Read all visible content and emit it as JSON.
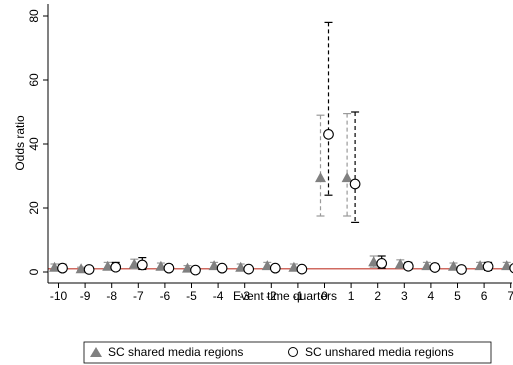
{
  "chart_data": {
    "type": "scatter",
    "title": "",
    "xlabel": "Event time quarters",
    "ylabel": "Odds ratio",
    "xlim": [
      -10.5,
      7
    ],
    "ylim": [
      -1,
      82
    ],
    "x_ticks": [
      -10,
      -9,
      -8,
      -7,
      -6,
      -5,
      -4,
      -3,
      -2,
      -1,
      0,
      1,
      2,
      3,
      4,
      5,
      6,
      7
    ],
    "y_ticks": [
      0,
      20,
      40,
      60,
      80
    ],
    "x_tick_labels": [
      "-10",
      "-9",
      "-8",
      "-7",
      "-6",
      "-5",
      "-4",
      "-3",
      "-2",
      "-1",
      "0",
      "1",
      "2",
      "3",
      "4",
      "5",
      "6",
      "7"
    ],
    "y_tick_labels": [
      "0",
      "20",
      "40",
      "60",
      "80"
    ],
    "reference_line": {
      "y": 1,
      "color": "#c0392b"
    },
    "grid": false,
    "legend_position": "bottom",
    "series": [
      {
        "name": "SC shared media regions",
        "marker": "triangle",
        "color": "#808080",
        "error_bar_style": "dashed-gray",
        "points": [
          {
            "x": -10,
            "y": 1.5,
            "lo": 0.5,
            "hi": 2.5
          },
          {
            "x": -9,
            "y": 1.0,
            "lo": 0.5,
            "hi": 1.5
          },
          {
            "x": -8,
            "y": 1.8,
            "lo": 0.8,
            "hi": 3.0
          },
          {
            "x": -7,
            "y": 2.5,
            "lo": 1.0,
            "hi": 4.0
          },
          {
            "x": -6,
            "y": 1.8,
            "lo": 0.8,
            "hi": 2.8
          },
          {
            "x": -5,
            "y": 1.2,
            "lo": 0.5,
            "hi": 2.0
          },
          {
            "x": -4,
            "y": 2.0,
            "lo": 1.0,
            "hi": 3.0
          },
          {
            "x": -3,
            "y": 1.5,
            "lo": 0.7,
            "hi": 2.5
          },
          {
            "x": -2,
            "y": 2.0,
            "lo": 1.0,
            "hi": 3.0
          },
          {
            "x": -1,
            "y": 1.5,
            "lo": 0.7,
            "hi": 2.5
          },
          {
            "x": 0,
            "y": 29.5,
            "lo": 17.5,
            "hi": 49
          },
          {
            "x": 1,
            "y": 29.5,
            "lo": 17.5,
            "hi": 49.5
          },
          {
            "x": 2,
            "y": 3.2,
            "lo": 1.5,
            "hi": 5.0
          },
          {
            "x": 3,
            "y": 2.5,
            "lo": 1.2,
            "hi": 3.8
          },
          {
            "x": 4,
            "y": 2.0,
            "lo": 1.0,
            "hi": 3.0
          },
          {
            "x": 5,
            "y": 1.8,
            "lo": 0.8,
            "hi": 2.8
          },
          {
            "x": 6,
            "y": 2.0,
            "lo": 1.0,
            "hi": 3.0
          },
          {
            "x": 7,
            "y": 2.0,
            "lo": 1.0,
            "hi": 3.0
          }
        ]
      },
      {
        "name": "SC unshared media regions",
        "marker": "hollow-circle",
        "color": "#000000",
        "error_bar_style": "dashed-black",
        "points": [
          {
            "x": -10,
            "y": 1.2,
            "lo": 0.4,
            "hi": 2.4
          },
          {
            "x": -9,
            "y": 0.8,
            "lo": 0.3,
            "hi": 1.5
          },
          {
            "x": -8,
            "y": 1.5,
            "lo": 0.5,
            "hi": 3.0
          },
          {
            "x": -7,
            "y": 2.2,
            "lo": 0.8,
            "hi": 4.5
          },
          {
            "x": -6,
            "y": 1.2,
            "lo": 0.5,
            "hi": 2.3
          },
          {
            "x": -5,
            "y": 0.6,
            "lo": 0.2,
            "hi": 1.2
          },
          {
            "x": -4,
            "y": 1.2,
            "lo": 0.5,
            "hi": 2.0
          },
          {
            "x": -3,
            "y": 0.9,
            "lo": 0.3,
            "hi": 1.6
          },
          {
            "x": -2,
            "y": 1.2,
            "lo": 0.5,
            "hi": 2.0
          },
          {
            "x": -1,
            "y": 0.9,
            "lo": 0.3,
            "hi": 1.6
          },
          {
            "x": 0,
            "y": 43,
            "lo": 24,
            "hi": 78
          },
          {
            "x": 1,
            "y": 27.5,
            "lo": 15.5,
            "hi": 50
          },
          {
            "x": 2,
            "y": 2.7,
            "lo": 1.2,
            "hi": 5.0
          },
          {
            "x": 3,
            "y": 1.8,
            "lo": 0.8,
            "hi": 3.0
          },
          {
            "x": 4,
            "y": 1.4,
            "lo": 0.6,
            "hi": 2.5
          },
          {
            "x": 5,
            "y": 0.8,
            "lo": 0.3,
            "hi": 1.5
          },
          {
            "x": 6,
            "y": 1.7,
            "lo": 0.5,
            "hi": 3.0
          },
          {
            "x": 7,
            "y": 1.2,
            "lo": 0.5,
            "hi": 2.2
          }
        ]
      }
    ],
    "legend": [
      {
        "label": "SC shared media regions",
        "marker": "triangle"
      },
      {
        "label": "SC unshared media regions",
        "marker": "hollow-circle"
      }
    ]
  }
}
